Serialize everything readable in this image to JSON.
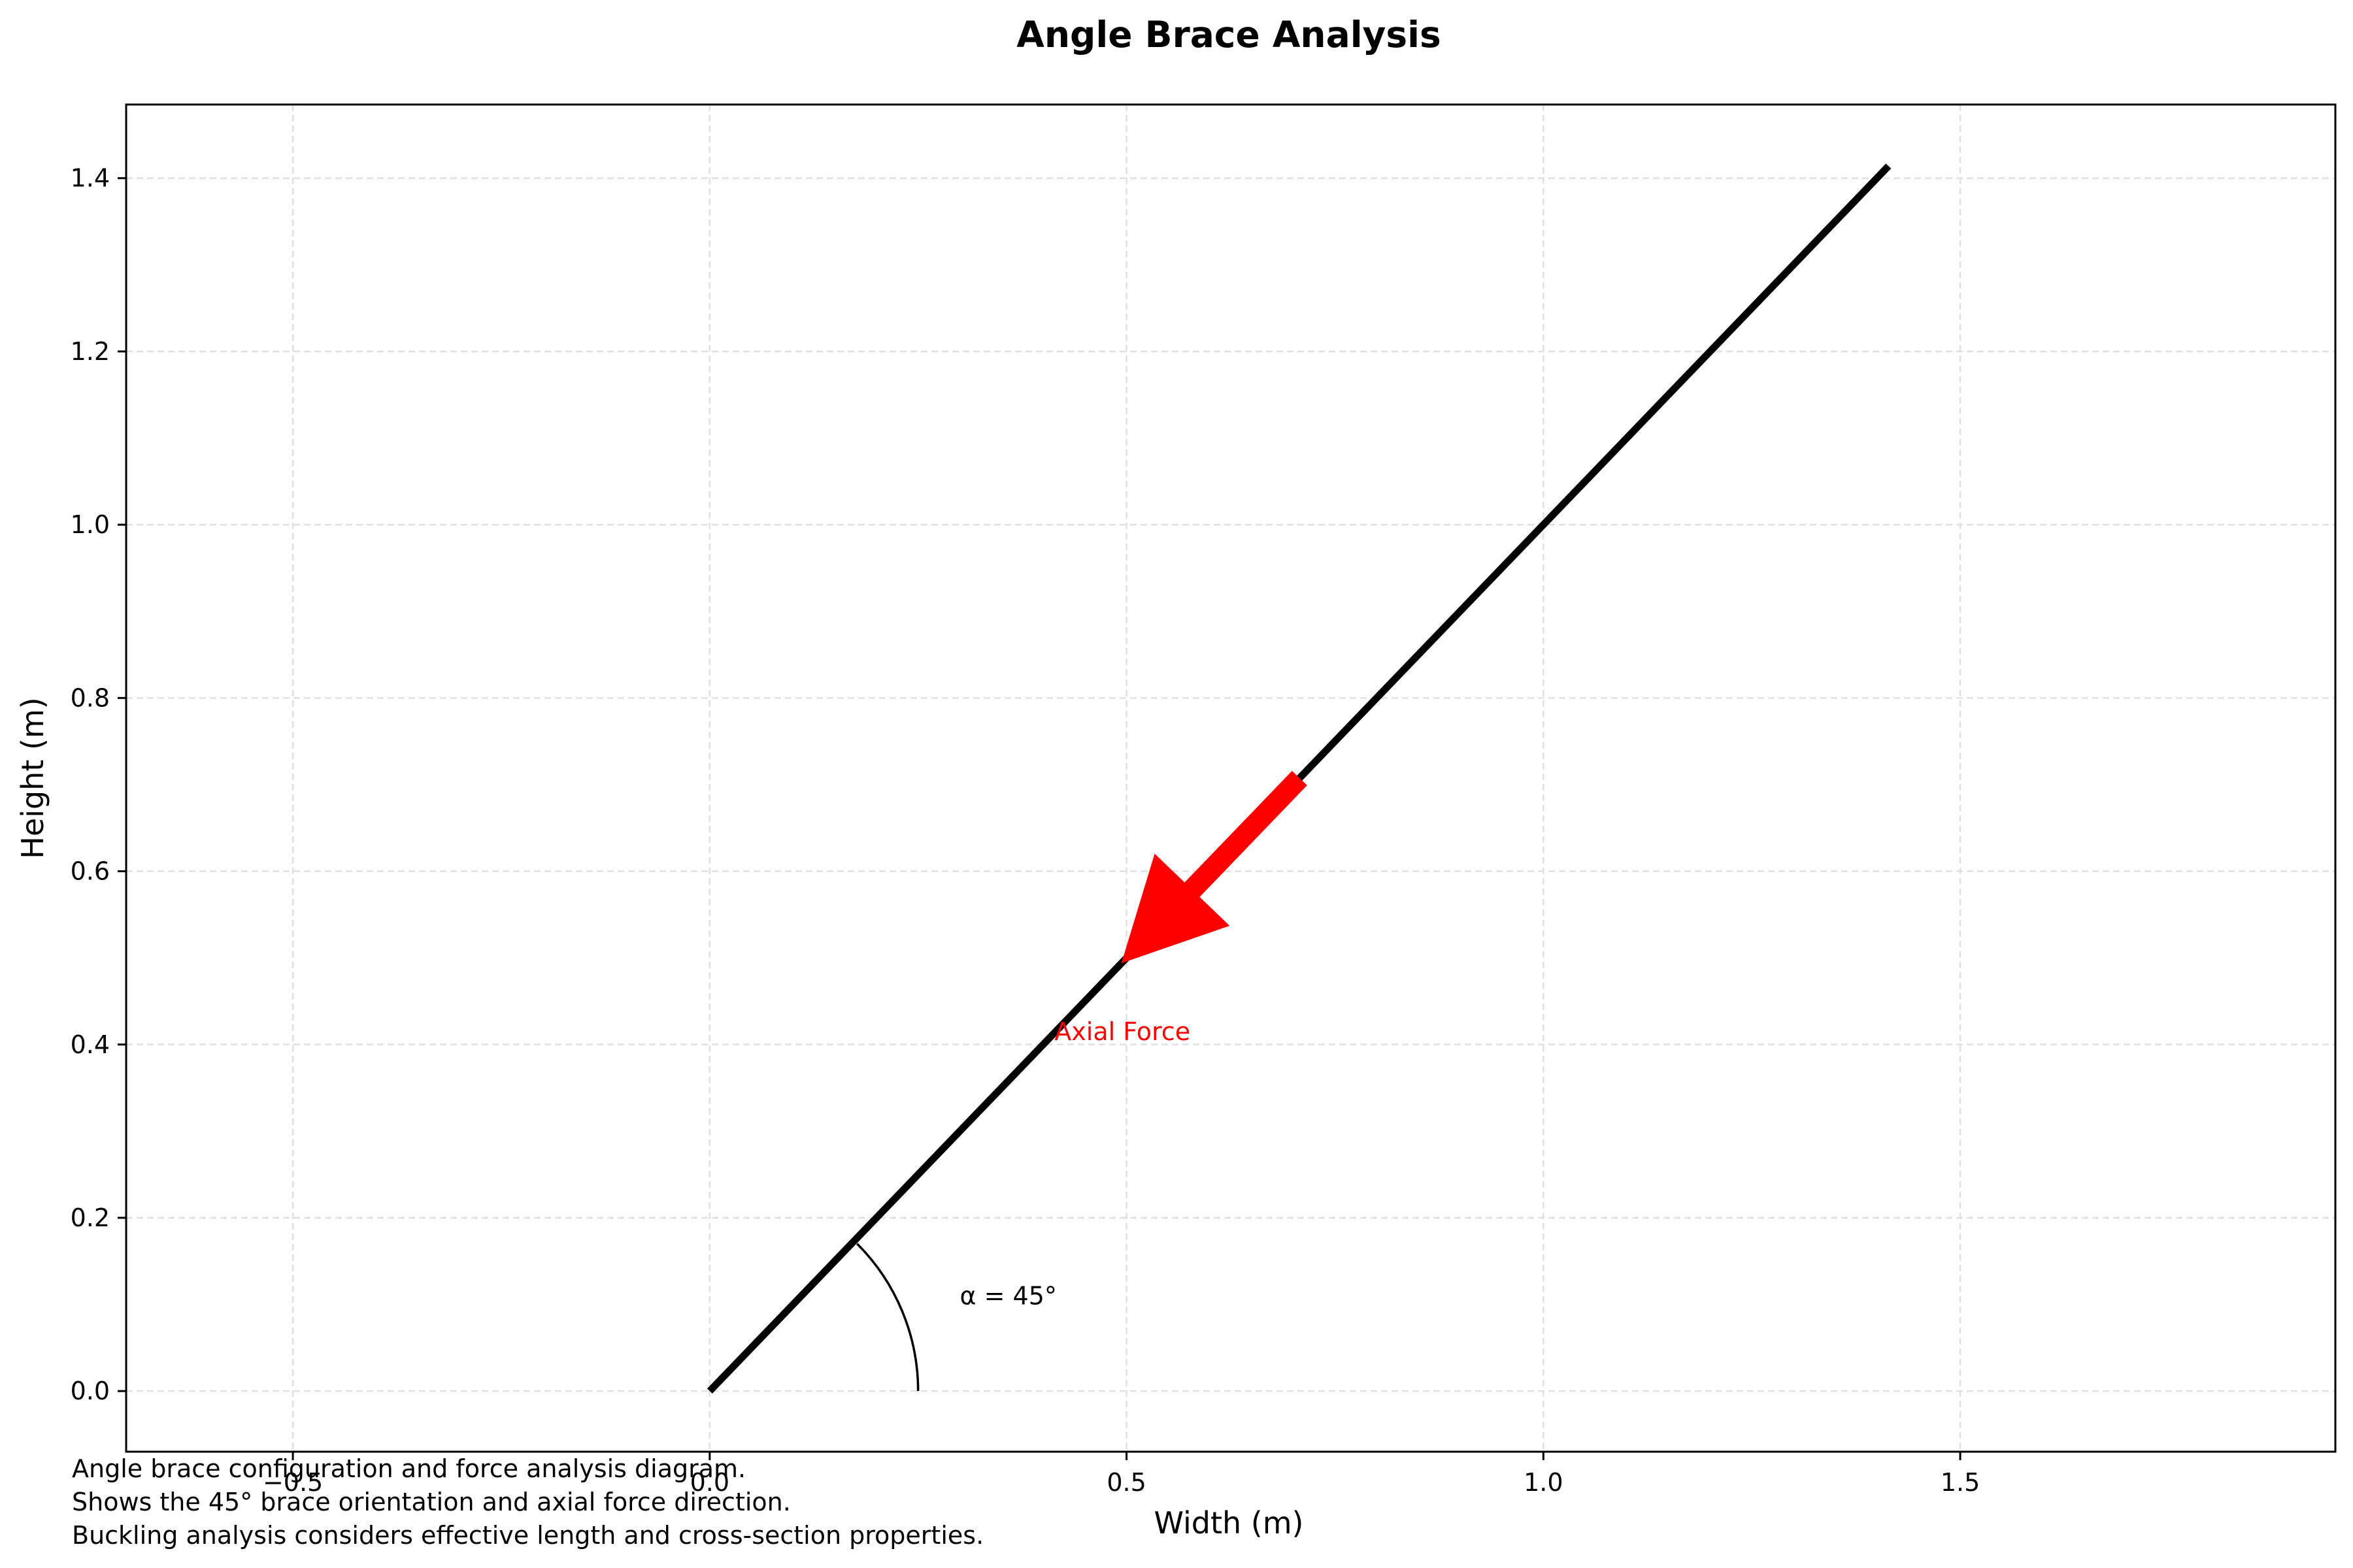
{
  "chart_data": {
    "type": "line",
    "title": "Angle Brace Analysis",
    "xlabel": "Width (m)",
    "ylabel": "Height (m)",
    "xlim": [
      -0.7,
      1.95
    ],
    "ylim": [
      -0.07,
      1.485
    ],
    "xticks": [
      -0.5,
      0.0,
      0.5,
      1.0,
      1.5
    ],
    "xtick_labels": [
      "−0.5",
      "0.0",
      "0.5",
      "1.0",
      "1.5"
    ],
    "yticks": [
      0.0,
      0.2,
      0.4,
      0.6,
      0.8,
      1.0,
      1.2,
      1.4
    ],
    "ytick_labels": [
      "0.0",
      "0.2",
      "0.4",
      "0.6",
      "0.8",
      "1.0",
      "1.2",
      "1.4"
    ],
    "grid": true,
    "brace": {
      "x": [
        0.0,
        1.414
      ],
      "y": [
        0.0,
        1.414
      ],
      "color": "#000000"
    },
    "force_arrow": {
      "from": [
        0.707,
        0.707
      ],
      "to": [
        0.495,
        0.495
      ],
      "color": "#ff0000",
      "label": "Axial Force",
      "label_pos": [
        0.495,
        0.415
      ]
    },
    "angle_arc": {
      "center": [
        0.0,
        0.0
      ],
      "radius": 0.25,
      "theta_start_deg": 0,
      "theta_end_deg": 45,
      "label": "α = 45°",
      "label_pos": [
        0.3,
        0.11
      ]
    }
  },
  "caption": {
    "lines": [
      "Angle brace configuration and force analysis diagram.",
      "Shows the 45° brace orientation and axial force direction.",
      "Buckling analysis considers effective length and cross-section properties."
    ]
  }
}
